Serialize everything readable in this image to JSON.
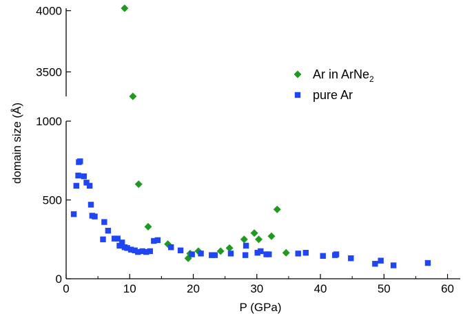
{
  "chart_data": {
    "type": "scatter",
    "xlabel": "P (GPa)",
    "ylabel": "domain size (Å)",
    "xlim": [
      0,
      62
    ],
    "axis_break": true,
    "upper_panel": {
      "ylim": [
        3300,
        4020
      ],
      "yticks": [
        3500,
        4000
      ]
    },
    "lower_panel": {
      "ylim": [
        0,
        1000
      ],
      "yticks": [
        0,
        500,
        1000
      ]
    },
    "xticks": [
      0,
      10,
      20,
      30,
      40,
      50,
      60
    ],
    "grid": false,
    "legend_position": "top-right",
    "series": [
      {
        "name": "Ar in ArNe",
        "name_subscript": "2",
        "color": "#1e9a1e",
        "marker": "diamond",
        "points": [
          [
            9.2,
            4020
          ],
          [
            10.5,
            3300
          ],
          [
            11.4,
            600
          ],
          [
            12.9,
            330
          ],
          [
            16.0,
            220
          ],
          [
            19.2,
            130
          ],
          [
            19.5,
            160
          ],
          [
            20.8,
            175
          ],
          [
            24.3,
            175
          ],
          [
            25.7,
            195
          ],
          [
            28.0,
            250
          ],
          [
            29.6,
            290
          ],
          [
            30.3,
            250
          ],
          [
            32.3,
            270
          ],
          [
            33.2,
            440
          ],
          [
            34.6,
            165
          ]
        ]
      },
      {
        "name": "pure Ar",
        "color": "#1f46f5",
        "marker": "square",
        "points": [
          [
            1.2,
            410
          ],
          [
            1.6,
            590
          ],
          [
            1.9,
            655
          ],
          [
            2.0,
            740
          ],
          [
            2.2,
            745
          ],
          [
            2.8,
            650
          ],
          [
            3.2,
            610
          ],
          [
            3.7,
            590
          ],
          [
            3.9,
            470
          ],
          [
            4.1,
            400
          ],
          [
            4.5,
            395
          ],
          [
            5.8,
            250
          ],
          [
            6.0,
            360
          ],
          [
            6.6,
            305
          ],
          [
            7.6,
            255
          ],
          [
            8.1,
            255
          ],
          [
            8.4,
            210
          ],
          [
            8.8,
            230
          ],
          [
            9.2,
            200
          ],
          [
            9.6,
            195
          ],
          [
            10.2,
            185
          ],
          [
            10.8,
            180
          ],
          [
            11.3,
            170
          ],
          [
            12.0,
            175
          ],
          [
            12.6,
            170
          ],
          [
            13.2,
            175
          ],
          [
            13.8,
            240
          ],
          [
            14.4,
            245
          ],
          [
            16.5,
            200
          ],
          [
            18.0,
            180
          ],
          [
            19.8,
            155
          ],
          [
            21.2,
            160
          ],
          [
            22.9,
            150
          ],
          [
            23.4,
            150
          ],
          [
            25.9,
            160
          ],
          [
            28.2,
            150
          ],
          [
            28.3,
            210
          ],
          [
            30.1,
            165
          ],
          [
            30.6,
            175
          ],
          [
            31.5,
            155
          ],
          [
            31.9,
            155
          ],
          [
            36.5,
            160
          ],
          [
            37.7,
            165
          ],
          [
            40.4,
            145
          ],
          [
            42.3,
            150
          ],
          [
            42.5,
            155
          ],
          [
            44.8,
            130
          ],
          [
            48.6,
            95
          ],
          [
            49.5,
            115
          ],
          [
            51.5,
            85
          ],
          [
            56.9,
            100
          ]
        ]
      }
    ]
  }
}
